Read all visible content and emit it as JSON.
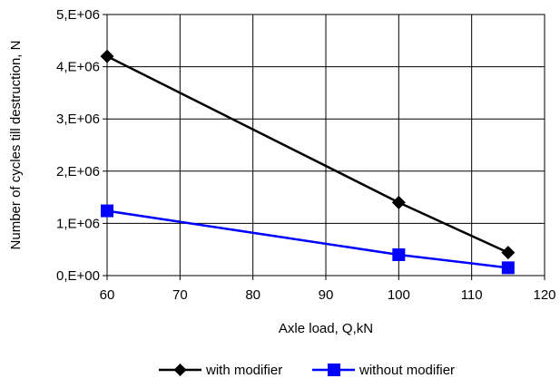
{
  "chart_data": {
    "type": "line",
    "xlabel": "Axle load, Q,kN",
    "ylabel": "Number of cycles till destruction, N",
    "xlim": [
      60,
      120
    ],
    "ylim": [
      0,
      5000000
    ],
    "x_ticks": [
      "60",
      "70",
      "80",
      "90",
      "100",
      "110",
      "120"
    ],
    "y_ticks": [
      "0,E+00",
      "1,E+06",
      "2,E+06",
      "3,E+06",
      "4,E+06",
      "5,E+06"
    ],
    "grid": true,
    "legend_position": "bottom",
    "series": [
      {
        "name": "with modifier",
        "color": "#000000",
        "marker": "diamond",
        "x": [
          60,
          100,
          115
        ],
        "y": [
          4200000,
          1400000,
          440000
        ]
      },
      {
        "name": "without modifier",
        "color": "#0000ff",
        "marker": "square",
        "x": [
          60,
          100,
          115
        ],
        "y": [
          1240000,
          400000,
          150000
        ]
      }
    ]
  }
}
